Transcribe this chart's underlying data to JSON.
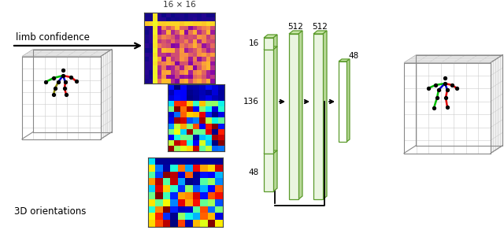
{
  "bg_color": "#ffffff",
  "arrow_label": "limb confidence",
  "bottom_label": "3D orientations",
  "grid_color": "#d0d0d0",
  "green_edge": "#5a9a2a",
  "green_face_front": "#eaf5e0",
  "green_face_side": "#b8d898",
  "green_face_top": "#c8e6a8",
  "label_16x16": "16 × 16",
  "label_16": "16",
  "label_136": "136",
  "label_48_left": "48",
  "label_512a": "512",
  "label_512b": "512",
  "label_48_right": "48"
}
